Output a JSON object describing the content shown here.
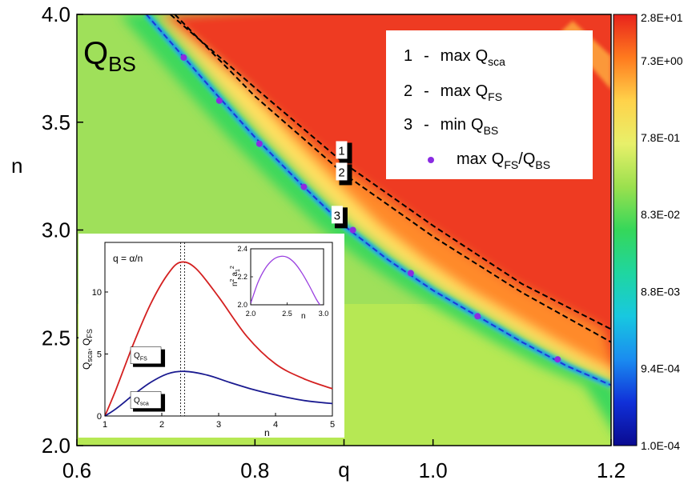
{
  "chart_data": [
    {
      "type": "heatmap",
      "panel_label": {
        "main": "Q",
        "sub": "BS"
      },
      "xlabel": "q",
      "ylabel": "n",
      "xlim": [
        0.6,
        1.2
      ],
      "ylim": [
        2.0,
        4.0
      ],
      "x_ticks": [
        "0.6",
        "0.8",
        "1.0",
        "1.2"
      ],
      "x_tick_values": [
        0.6,
        0.8,
        1.0,
        1.2
      ],
      "x_axis_extra_label": "q",
      "x_axis_extra_value": 0.9,
      "y_ticks": [
        "2.0",
        "2.5",
        "3.0",
        "3.5",
        "4.0"
      ],
      "y_tick_values": [
        2.0,
        2.5,
        3.0,
        3.5,
        4.0
      ],
      "colorbar": {
        "scale": "log",
        "range": [
          0.0001,
          28
        ],
        "labels": [
          "2.8E+01",
          "7.3E+00",
          "7.8E-01",
          "8.3E-02",
          "8.8E-03",
          "9.4E-04",
          "1.0E-04"
        ],
        "colors": [
          "#e8221c",
          "#ff7a1e",
          "#ffd24a",
          "#e8f06a",
          "#9be04e",
          "#35d75a",
          "#1fd6a0",
          "#18c8e0",
          "#1a8cf0",
          "#1030d8",
          "#0a0a90"
        ]
      },
      "series": [
        {
          "id": "1",
          "style": "dashed",
          "points": [
            [
              0.705,
              4.0
            ],
            [
              0.8,
              3.66
            ],
            [
              0.9,
              3.31
            ],
            [
              1.0,
              3.02
            ],
            [
              1.1,
              2.75
            ],
            [
              1.2,
              2.54
            ]
          ]
        },
        {
          "id": "2",
          "style": "dashed",
          "points": [
            [
              0.71,
              4.0
            ],
            [
              0.8,
              3.62
            ],
            [
              0.9,
              3.26
            ],
            [
              1.0,
              2.97
            ],
            [
              1.1,
              2.71
            ],
            [
              1.2,
              2.48
            ]
          ]
        },
        {
          "id": "3",
          "style": "dashed",
          "points": [
            [
              0.678,
              4.0
            ],
            [
              0.75,
              3.66
            ],
            [
              0.8,
              3.43
            ],
            [
              0.85,
              3.22
            ],
            [
              0.9,
              3.02
            ],
            [
              0.95,
              2.86
            ],
            [
              1.0,
              2.72
            ],
            [
              1.05,
              2.6
            ],
            [
              1.1,
              2.48
            ],
            [
              1.15,
              2.37
            ],
            [
              1.2,
              2.28
            ]
          ]
        }
      ],
      "markers": {
        "label": "max Q_FS/Q_BS",
        "color": "#8a2be2",
        "points": [
          [
            0.72,
            3.8
          ],
          [
            0.76,
            3.6
          ],
          [
            0.805,
            3.4
          ],
          [
            0.855,
            3.2
          ],
          [
            0.91,
            3.0
          ],
          [
            0.975,
            2.8
          ],
          [
            1.05,
            2.6
          ],
          [
            1.14,
            2.4
          ]
        ]
      },
      "curve_labels": [
        {
          "text": "1",
          "at": [
            0.9,
            3.36
          ]
        },
        {
          "text": "2",
          "at": [
            0.9,
            3.26
          ]
        },
        {
          "text": "3",
          "at": [
            0.895,
            3.06
          ]
        }
      ],
      "legend": {
        "placement": "top-right",
        "entries": [
          {
            "num": "1",
            "dash": "-",
            "word": "max",
            "q": "Q",
            "sub": "sca"
          },
          {
            "num": "2",
            "dash": "-",
            "word": "max",
            "q": "Q",
            "sub": "FS"
          },
          {
            "num": "3",
            "dash": "-",
            "word": "min",
            "q": "Q",
            "sub": "BS"
          },
          {
            "marker": true,
            "word": "max",
            "q": "Q",
            "sub": "FS",
            "slash": "/",
            "q2": "Q",
            "sub2": "BS"
          }
        ]
      }
    },
    {
      "type": "line",
      "annotation": "q = α/n",
      "xlabel": "n",
      "ylabel_parts": {
        "a": "Q",
        "a_sub": "sca",
        "sep": ", ",
        "b": "Q",
        "b_sub": "FS"
      },
      "xlim": [
        1,
        5
      ],
      "ylim": [
        0,
        14
      ],
      "x_ticks": [
        "1",
        "2",
        "3",
        "4",
        "5"
      ],
      "x_tick_values": [
        1,
        2,
        3,
        4,
        5
      ],
      "y_ticks": [
        "0",
        "5",
        "10"
      ],
      "y_tick_values": [
        0,
        5,
        10
      ],
      "vlines": [
        2.33,
        2.4
      ],
      "series": [
        {
          "main": "Q",
          "sub": "FS",
          "color": "#d42020",
          "label_at": [
            1.55,
            4.6
          ],
          "points": [
            [
              1.0,
              0
            ],
            [
              1.2,
              2.2
            ],
            [
              1.5,
              5.8
            ],
            [
              1.8,
              9.0
            ],
            [
              2.1,
              11.4
            ],
            [
              2.33,
              12.4
            ],
            [
              2.6,
              11.9
            ],
            [
              3.0,
              9.6
            ],
            [
              3.5,
              6.4
            ],
            [
              4.0,
              4.2
            ],
            [
              4.5,
              3.0
            ],
            [
              5.0,
              2.2
            ]
          ]
        },
        {
          "main": "Q",
          "sub": "sca",
          "color": "#1a1a90",
          "label_at": [
            1.55,
            1.0
          ],
          "points": [
            [
              1.0,
              0
            ],
            [
              1.2,
              0.6
            ],
            [
              1.5,
              1.7
            ],
            [
              1.8,
              2.7
            ],
            [
              2.1,
              3.4
            ],
            [
              2.4,
              3.6
            ],
            [
              2.8,
              3.3
            ],
            [
              3.2,
              2.7
            ],
            [
              3.6,
              2.15
            ],
            [
              4.0,
              1.7
            ],
            [
              4.5,
              1.25
            ],
            [
              5.0,
              1.0
            ]
          ]
        }
      ]
    },
    {
      "type": "line",
      "ylabel_parts": {
        "a": "n",
        "a_sup": "2",
        "b": "a",
        "b_sub": "1",
        "b_sup": "2"
      },
      "xlabel": "n",
      "xlim": [
        2.0,
        3.0
      ],
      "ylim": [
        2.0,
        2.4
      ],
      "x_ticks": [
        "2.0",
        "2.5",
        "3.0"
      ],
      "x_tick_values": [
        2.0,
        2.5,
        3.0
      ],
      "y_ticks": [
        "2.0",
        "2.2",
        "2.4"
      ],
      "y_tick_values": [
        2.0,
        2.2,
        2.4
      ],
      "series": [
        {
          "color": "#9a40e0",
          "points": [
            [
              2.0,
              2.01
            ],
            [
              2.1,
              2.16
            ],
            [
              2.2,
              2.26
            ],
            [
              2.3,
              2.32
            ],
            [
              2.4,
              2.345
            ],
            [
              2.5,
              2.34
            ],
            [
              2.6,
              2.3
            ],
            [
              2.7,
              2.23
            ],
            [
              2.8,
              2.14
            ],
            [
              2.9,
              2.04
            ],
            [
              2.95,
              2.0
            ]
          ]
        }
      ]
    }
  ]
}
